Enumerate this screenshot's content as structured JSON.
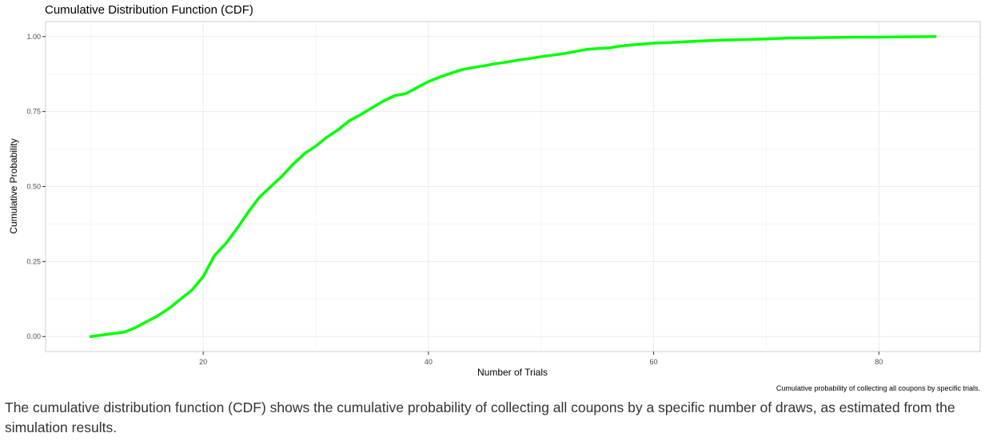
{
  "chart_data": {
    "type": "line",
    "title": "Cumulative Distribution Function (CDF)",
    "xlabel": "Number of Trials",
    "ylabel": "Cumulative Probability",
    "caption": "Cumulative probability of collecting all coupons by specific trials.",
    "xlim": [
      6,
      89
    ],
    "ylim": [
      -0.05,
      1.05
    ],
    "x_ticks": [
      20,
      40,
      60,
      80
    ],
    "x_tick_labels": [
      "20",
      "40",
      "60",
      "80"
    ],
    "y_ticks": [
      0,
      0.25,
      0.5,
      0.75,
      1
    ],
    "y_tick_labels": [
      "0.00",
      "0.25",
      "0.50",
      "0.75",
      "1.00"
    ],
    "grid": true,
    "colors": {
      "line": "#00ff00",
      "grid_major": "#ebebeb",
      "grid_minor": "#f5f5f5",
      "panel_border": "#cccccc"
    },
    "series": [
      {
        "x": [
          10,
          11,
          12,
          13,
          14,
          15,
          16,
          17,
          18,
          19,
          20,
          21,
          22,
          23,
          24,
          25,
          26,
          27,
          28,
          29,
          30,
          31,
          32,
          33,
          34,
          35,
          36,
          37,
          38,
          39,
          40,
          41,
          42,
          43,
          44,
          45,
          46,
          47,
          48,
          49,
          50,
          51,
          52,
          53,
          54,
          55,
          56,
          57,
          58,
          59,
          60,
          62,
          64,
          66,
          68,
          70,
          72,
          74,
          76,
          78,
          80,
          82,
          85
        ],
        "y": [
          0.0,
          0.005,
          0.01,
          0.015,
          0.03,
          0.05,
          0.07,
          0.095,
          0.125,
          0.155,
          0.2,
          0.27,
          0.31,
          0.36,
          0.415,
          0.465,
          0.5,
          0.535,
          0.575,
          0.61,
          0.635,
          0.665,
          0.69,
          0.72,
          0.74,
          0.763,
          0.785,
          0.803,
          0.81,
          0.83,
          0.85,
          0.865,
          0.878,
          0.89,
          0.897,
          0.903,
          0.91,
          0.915,
          0.922,
          0.927,
          0.933,
          0.938,
          0.943,
          0.95,
          0.957,
          0.96,
          0.962,
          0.968,
          0.972,
          0.975,
          0.978,
          0.981,
          0.985,
          0.988,
          0.99,
          0.992,
          0.995,
          0.996,
          0.997,
          0.998,
          0.998,
          0.999,
          1.0
        ]
      }
    ]
  },
  "description": "The cumulative distribution function (CDF) shows the cumulative probability of collecting all coupons by a specific number of draws, as estimated from the simulation results."
}
